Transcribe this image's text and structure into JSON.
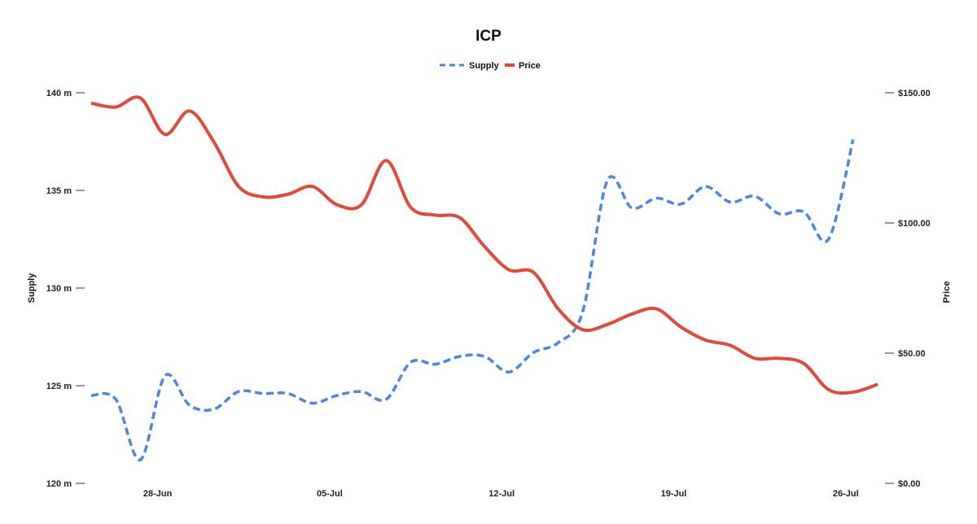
{
  "chart_data": {
    "type": "line",
    "title": "ICP",
    "legend": {
      "placement": "top-center",
      "entries": [
        "Supply",
        "Price"
      ]
    },
    "x_axis": {
      "type": "date",
      "range": [
        "2021-06-25",
        "2021-07-27"
      ],
      "tick_labels": [
        "28-Jun",
        "05-Jul",
        "12-Jul",
        "19-Jul",
        "26-Jul"
      ],
      "tick_dates": [
        "2021-06-28",
        "2021-07-05",
        "2021-07-12",
        "2021-07-19",
        "2021-07-26"
      ]
    },
    "y_left": {
      "label": "Supply",
      "range": [
        120,
        140
      ],
      "ticks": [
        120,
        125,
        130,
        135,
        140
      ],
      "tick_labels": [
        "120 m",
        "125 m",
        "130 m",
        "135 m",
        "140 m"
      ]
    },
    "y_right": {
      "label": "Price",
      "range": [
        0,
        150
      ],
      "ticks": [
        0,
        50,
        100,
        150
      ],
      "tick_labels": [
        "$0.00",
        "$50.00",
        "$100.00",
        "$150.00"
      ]
    },
    "grid": false,
    "series": [
      {
        "name": "Supply",
        "axis": "left",
        "color": "#4a86e8",
        "style": "dashed",
        "points": [
          [
            "2021-06-25",
            124.5
          ],
          [
            "2021-06-26",
            124.3
          ],
          [
            "2021-06-27",
            121.2
          ],
          [
            "2021-06-28",
            125.5
          ],
          [
            "2021-06-29",
            124.0
          ],
          [
            "2021-06-30",
            123.8
          ],
          [
            "2021-07-01",
            124.7
          ],
          [
            "2021-07-02",
            124.6
          ],
          [
            "2021-07-03",
            124.6
          ],
          [
            "2021-07-04",
            124.1
          ],
          [
            "2021-07-05",
            124.5
          ],
          [
            "2021-07-06",
            124.7
          ],
          [
            "2021-07-07",
            124.3
          ],
          [
            "2021-07-08",
            126.2
          ],
          [
            "2021-07-09",
            126.1
          ],
          [
            "2021-07-10",
            126.5
          ],
          [
            "2021-07-11",
            126.5
          ],
          [
            "2021-07-12",
            125.7
          ],
          [
            "2021-07-13",
            126.7
          ],
          [
            "2021-07-14",
            127.2
          ],
          [
            "2021-07-15",
            128.8
          ],
          [
            "2021-07-16",
            135.5
          ],
          [
            "2021-07-17",
            134.1
          ],
          [
            "2021-07-18",
            134.6
          ],
          [
            "2021-07-19",
            134.3
          ],
          [
            "2021-07-20",
            135.2
          ],
          [
            "2021-07-21",
            134.4
          ],
          [
            "2021-07-22",
            134.7
          ],
          [
            "2021-07-23",
            133.8
          ],
          [
            "2021-07-24",
            133.9
          ],
          [
            "2021-07-25",
            132.5
          ],
          [
            "2021-07-26",
            137.6
          ]
        ]
      },
      {
        "name": "Price",
        "axis": "right",
        "color": "#e54839",
        "style": "solid",
        "points": [
          [
            "2021-06-25",
            146
          ],
          [
            "2021-06-26",
            144.5
          ],
          [
            "2021-06-27",
            148
          ],
          [
            "2021-06-28",
            134
          ],
          [
            "2021-06-29",
            143
          ],
          [
            "2021-06-30",
            131
          ],
          [
            "2021-07-01",
            114
          ],
          [
            "2021-07-02",
            110
          ],
          [
            "2021-07-03",
            111
          ],
          [
            "2021-07-04",
            114
          ],
          [
            "2021-07-05",
            107
          ],
          [
            "2021-07-06",
            107
          ],
          [
            "2021-07-07",
            124
          ],
          [
            "2021-07-08",
            106
          ],
          [
            "2021-07-09",
            103
          ],
          [
            "2021-07-10",
            102
          ],
          [
            "2021-07-11",
            91
          ],
          [
            "2021-07-12",
            82
          ],
          [
            "2021-07-13",
            81
          ],
          [
            "2021-07-14",
            67
          ],
          [
            "2021-07-15",
            59
          ],
          [
            "2021-07-16",
            61
          ],
          [
            "2021-07-17",
            65
          ],
          [
            "2021-07-18",
            67
          ],
          [
            "2021-07-19",
            60
          ],
          [
            "2021-07-20",
            55
          ],
          [
            "2021-07-21",
            53
          ],
          [
            "2021-07-22",
            48
          ],
          [
            "2021-07-23",
            48
          ],
          [
            "2021-07-24",
            46
          ],
          [
            "2021-07-25",
            36
          ],
          [
            "2021-07-26",
            35
          ],
          [
            "2021-07-27",
            38
          ]
        ]
      }
    ]
  }
}
